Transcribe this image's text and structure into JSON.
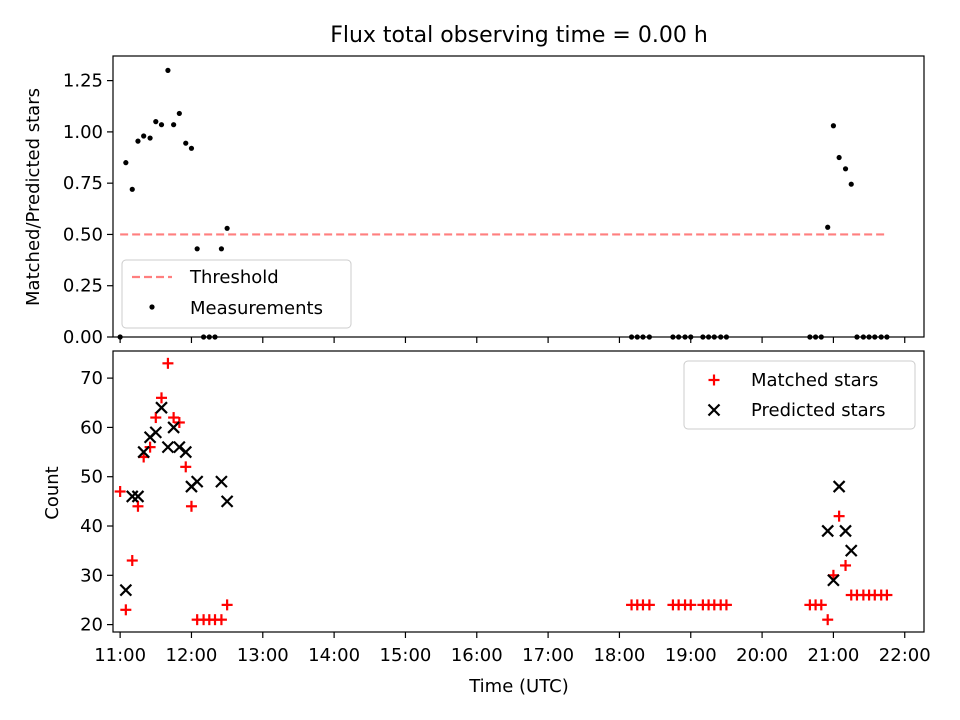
{
  "figure": {
    "title": "Flux total observing time = 0.00 h"
  },
  "colors": {
    "threshold": "#ff7f7f",
    "measurements": "#000000",
    "matched": "#ff0000",
    "predicted": "#000000"
  },
  "chart_data": [
    {
      "type": "scatter",
      "panel": "top",
      "xlabel": "",
      "ylabel": "Matched/Predicted stars",
      "xlim": [
        10.9,
        22.27
      ],
      "ylim": [
        0,
        1.37
      ],
      "yticks": [
        0.0,
        0.25,
        0.5,
        0.75,
        1.0,
        1.25
      ],
      "ytick_labels": [
        "0.00",
        "0.25",
        "0.50",
        "0.75",
        "1.00",
        "1.25"
      ],
      "legend": {
        "position": "lower-left",
        "entries": [
          "Threshold",
          "Measurements"
        ]
      },
      "threshold": {
        "name": "Threshold",
        "y": 0.5,
        "x": [
          11.0,
          21.75
        ]
      },
      "series": [
        {
          "name": "Measurements",
          "marker": "dot",
          "points": [
            [
              11.0,
              0.0
            ],
            [
              11.08,
              0.85
            ],
            [
              11.17,
              0.72
            ],
            [
              11.25,
              0.955
            ],
            [
              11.33,
              0.98
            ],
            [
              11.42,
              0.97
            ],
            [
              11.5,
              1.05
            ],
            [
              11.58,
              1.035
            ],
            [
              11.67,
              1.3
            ],
            [
              11.75,
              1.035
            ],
            [
              11.83,
              1.09
            ],
            [
              11.92,
              0.945
            ],
            [
              12.0,
              0.92
            ],
            [
              12.08,
              0.43
            ],
            [
              12.17,
              0.0
            ],
            [
              12.25,
              0.0
            ],
            [
              12.33,
              0.0
            ],
            [
              12.42,
              0.43
            ],
            [
              12.5,
              0.53
            ],
            [
              18.17,
              0.0
            ],
            [
              18.25,
              0.0
            ],
            [
              18.33,
              0.0
            ],
            [
              18.42,
              0.0
            ],
            [
              18.75,
              0.0
            ],
            [
              18.83,
              0.0
            ],
            [
              18.92,
              0.0
            ],
            [
              19.0,
              0.0
            ],
            [
              19.17,
              0.0
            ],
            [
              19.25,
              0.0
            ],
            [
              19.33,
              0.0
            ],
            [
              19.42,
              0.0
            ],
            [
              19.5,
              0.0
            ],
            [
              20.67,
              0.0
            ],
            [
              20.75,
              0.0
            ],
            [
              20.83,
              0.0
            ],
            [
              20.92,
              0.535
            ],
            [
              21.0,
              1.03
            ],
            [
              21.08,
              0.875
            ],
            [
              21.17,
              0.82
            ],
            [
              21.25,
              0.745
            ],
            [
              21.33,
              0.0
            ],
            [
              21.42,
              0.0
            ],
            [
              21.5,
              0.0
            ],
            [
              21.58,
              0.0
            ],
            [
              21.67,
              0.0
            ],
            [
              21.75,
              0.0
            ]
          ]
        }
      ]
    },
    {
      "type": "scatter",
      "panel": "bottom",
      "xlabel": "Time (UTC)",
      "ylabel": "Count",
      "xlim": [
        10.9,
        22.27
      ],
      "ylim": [
        18.5,
        75.5
      ],
      "xticks": [
        11,
        12,
        13,
        14,
        15,
        16,
        17,
        18,
        19,
        20,
        21,
        22
      ],
      "xtick_labels": [
        "11:00",
        "12:00",
        "13:00",
        "14:00",
        "15:00",
        "16:00",
        "17:00",
        "18:00",
        "19:00",
        "20:00",
        "21:00",
        "22:00"
      ],
      "yticks": [
        20,
        30,
        40,
        50,
        60,
        70
      ],
      "ytick_labels": [
        "20",
        "30",
        "40",
        "50",
        "60",
        "70"
      ],
      "legend": {
        "position": "top-right",
        "entries": [
          "Matched stars",
          "Predicted stars"
        ]
      },
      "series": [
        {
          "name": "Matched stars",
          "marker": "plus",
          "points": [
            [
              11.0,
              47
            ],
            [
              11.08,
              23
            ],
            [
              11.17,
              33
            ],
            [
              11.25,
              44
            ],
            [
              11.33,
              54
            ],
            [
              11.42,
              56
            ],
            [
              11.5,
              62
            ],
            [
              11.58,
              66
            ],
            [
              11.67,
              73
            ],
            [
              11.75,
              62
            ],
            [
              11.83,
              61
            ],
            [
              11.92,
              52
            ],
            [
              12.0,
              44
            ],
            [
              12.08,
              21
            ],
            [
              12.17,
              21
            ],
            [
              12.25,
              21
            ],
            [
              12.33,
              21
            ],
            [
              12.42,
              21
            ],
            [
              12.5,
              24
            ],
            [
              18.17,
              24
            ],
            [
              18.25,
              24
            ],
            [
              18.33,
              24
            ],
            [
              18.42,
              24
            ],
            [
              18.75,
              24
            ],
            [
              18.83,
              24
            ],
            [
              18.92,
              24
            ],
            [
              19.0,
              24
            ],
            [
              19.17,
              24
            ],
            [
              19.25,
              24
            ],
            [
              19.33,
              24
            ],
            [
              19.42,
              24
            ],
            [
              19.5,
              24
            ],
            [
              20.67,
              24
            ],
            [
              20.75,
              24
            ],
            [
              20.83,
              24
            ],
            [
              20.92,
              21
            ],
            [
              21.0,
              30
            ],
            [
              21.08,
              42
            ],
            [
              21.17,
              32
            ],
            [
              21.25,
              26
            ],
            [
              21.33,
              26
            ],
            [
              21.42,
              26
            ],
            [
              21.5,
              26
            ],
            [
              21.58,
              26
            ],
            [
              21.67,
              26
            ],
            [
              21.75,
              26
            ]
          ]
        },
        {
          "name": "Predicted stars",
          "marker": "x",
          "points": [
            [
              11.08,
              27
            ],
            [
              11.17,
              46
            ],
            [
              11.25,
              46
            ],
            [
              11.33,
              55
            ],
            [
              11.42,
              58
            ],
            [
              11.5,
              59
            ],
            [
              11.58,
              64
            ],
            [
              11.67,
              56
            ],
            [
              11.75,
              60
            ],
            [
              11.83,
              56
            ],
            [
              11.92,
              55
            ],
            [
              12.0,
              48
            ],
            [
              12.08,
              49
            ],
            [
              12.42,
              49
            ],
            [
              12.5,
              45
            ],
            [
              20.92,
              39
            ],
            [
              21.0,
              29
            ],
            [
              21.08,
              48
            ],
            [
              21.17,
              39
            ],
            [
              21.25,
              35
            ]
          ]
        }
      ]
    }
  ]
}
